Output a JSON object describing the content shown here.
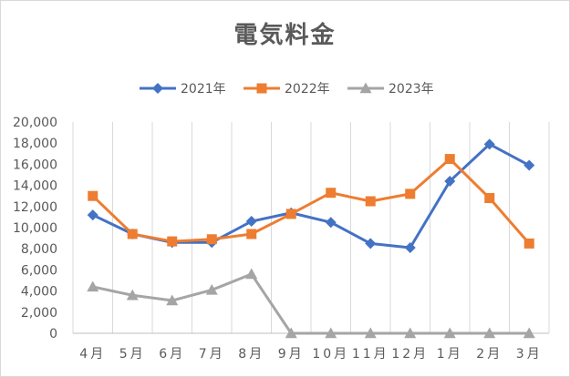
{
  "chart_data": {
    "type": "line",
    "title": "電気料金",
    "categories": [
      "4月",
      "5月",
      "6月",
      "7月",
      "8月",
      "9月",
      "10月",
      "11月",
      "12月",
      "1月",
      "2月",
      "3月"
    ],
    "series": [
      {
        "name": "2021年",
        "color": "#4472c4",
        "marker": "diamond",
        "values": [
          11200,
          9400,
          8600,
          8600,
          10600,
          11400,
          10500,
          8500,
          8100,
          14400,
          17900,
          15900
        ]
      },
      {
        "name": "2022年",
        "color": "#ed7d31",
        "marker": "square",
        "values": [
          13000,
          9400,
          8700,
          8900,
          9400,
          11300,
          13300,
          12500,
          13200,
          16500,
          12800,
          8500
        ]
      },
      {
        "name": "2023年",
        "color": "#a5a5a5",
        "marker": "triangle",
        "values": [
          4400,
          3600,
          3100,
          4100,
          5600,
          0,
          0,
          0,
          0,
          0,
          0,
          0
        ]
      }
    ],
    "y_ticks": [
      "0",
      "2,000",
      "4,000",
      "6,000",
      "8,000",
      "10,000",
      "12,000",
      "14,000",
      "16,000",
      "18,000",
      "20,000"
    ],
    "ylim": [
      0,
      20000
    ],
    "y_step": 2000,
    "grid": "vertical",
    "legend_position": "top"
  }
}
